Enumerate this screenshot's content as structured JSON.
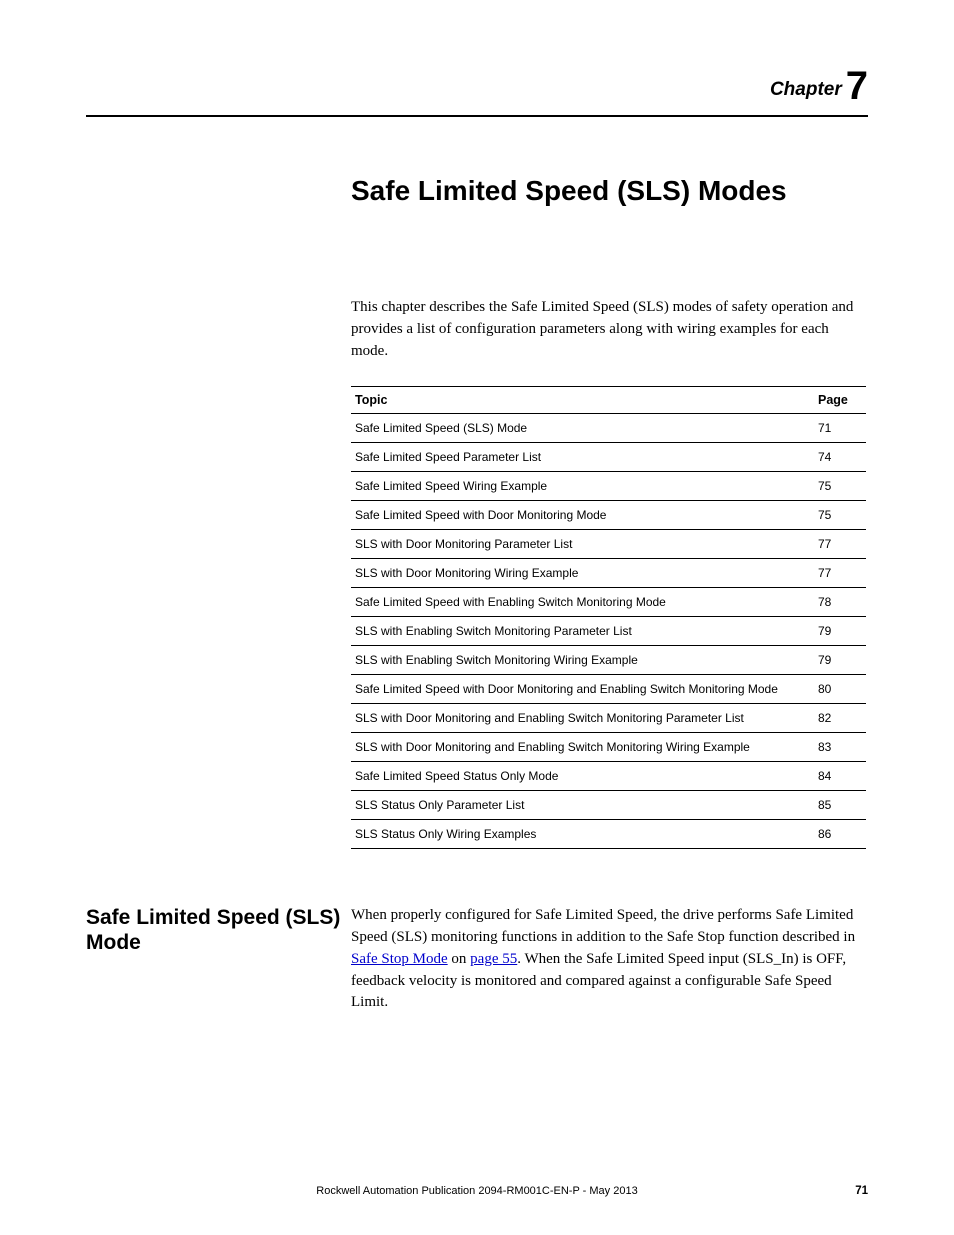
{
  "chapter": {
    "label": "Chapter",
    "number": "7"
  },
  "title": "Safe Limited Speed (SLS) Modes",
  "intro": "This chapter describes the Safe Limited Speed (SLS) modes of safety operation and provides a list of configuration parameters along with wiring examples for each mode.",
  "table": {
    "headers": {
      "topic": "Topic",
      "page": "Page"
    },
    "rows": [
      {
        "topic": "Safe Limited Speed (SLS) Mode",
        "page": "71"
      },
      {
        "topic": "Safe Limited Speed Parameter List",
        "page": "74"
      },
      {
        "topic": "Safe Limited Speed Wiring Example",
        "page": "75"
      },
      {
        "topic": "Safe Limited Speed with Door Monitoring Mode",
        "page": "75"
      },
      {
        "topic": "SLS with Door Monitoring Parameter List",
        "page": "77"
      },
      {
        "topic": "SLS with Door Monitoring Wiring Example",
        "page": "77"
      },
      {
        "topic": "Safe Limited Speed with Enabling Switch Monitoring Mode",
        "page": "78"
      },
      {
        "topic": "SLS with Enabling Switch Monitoring Parameter List",
        "page": "79"
      },
      {
        "topic": "SLS with Enabling Switch Monitoring Wiring Example",
        "page": "79"
      },
      {
        "topic": "Safe Limited Speed with Door Monitoring and Enabling Switch Monitoring Mode",
        "page": "80"
      },
      {
        "topic": "SLS with Door Monitoring and Enabling Switch Monitoring Parameter List",
        "page": "82"
      },
      {
        "topic": "SLS with Door Monitoring and Enabling Switch Monitoring Wiring Example",
        "page": "83"
      },
      {
        "topic": "Safe Limited Speed Status Only Mode",
        "page": "84"
      },
      {
        "topic": "SLS Status Only Parameter List",
        "page": "85"
      },
      {
        "topic": "SLS Status Only Wiring Examples",
        "page": "86"
      }
    ]
  },
  "section": {
    "heading": "Safe Limited Speed (SLS) Mode",
    "body_pre": "When properly configured for Safe Limited Speed, the drive performs Safe Limited Speed (SLS) monitoring functions in addition to the Safe Stop function described in ",
    "link1_text": "Safe Stop Mode",
    "body_mid": " on ",
    "link2_text": "page 55",
    "body_post": ". When the Safe Limited Speed input (SLS_In) is OFF, feedback velocity is monitored and compared against a configurable Safe Speed Limit."
  },
  "footer": {
    "publication": "Rockwell Automation Publication 2094-RM001C-EN-P - May 2013",
    "page_number": "71"
  }
}
